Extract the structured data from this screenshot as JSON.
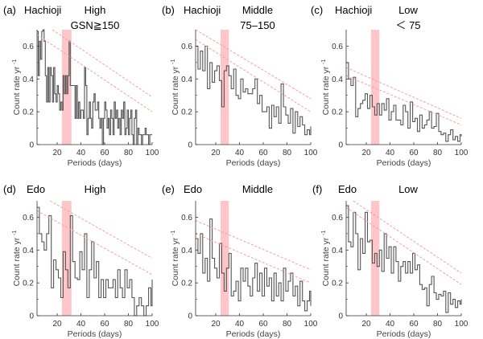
{
  "chart_data": [
    {
      "id": "a",
      "type": "line",
      "panel_label": "(a)",
      "site": "Hachioji",
      "title_line1": "High",
      "title_line2": "GSN≧150",
      "xlabel": "Periods (days)",
      "ylabel": "Count rate yr",
      "ylabel_sup": "-1",
      "xlim": [
        3,
        100
      ],
      "ylim": [
        0,
        0.7
      ],
      "xticks": [
        20,
        40,
        60,
        80,
        100
      ],
      "yticks": [
        0,
        0.2,
        0.4,
        0.6
      ],
      "ytick_labels": [
        "0",
        "0.2",
        "0.4",
        "0.6"
      ],
      "highlight_band": [
        24,
        32
      ],
      "significance_lines": [
        {
          "name": "upper",
          "x": [
            16,
            100
          ],
          "y": [
            0.7,
            0.29
          ]
        },
        {
          "name": "lower",
          "x": [
            3,
            100
          ],
          "y": [
            0.67,
            0.2
          ]
        }
      ],
      "series": {
        "x": [
          3,
          4,
          5,
          6,
          7,
          8,
          9,
          10,
          11,
          12,
          13,
          14,
          15,
          16,
          17,
          18,
          19,
          20,
          21,
          22,
          23,
          24,
          25,
          26,
          27,
          28,
          29,
          30,
          31,
          32,
          33,
          34,
          35,
          36,
          37,
          38,
          39,
          40,
          41,
          42,
          43,
          44,
          45,
          46,
          47,
          48,
          49,
          50,
          51,
          52,
          53,
          54,
          55,
          56,
          57,
          58,
          59,
          60,
          61,
          62,
          63,
          64,
          65,
          66,
          67,
          68,
          69,
          70,
          71,
          72,
          73,
          74,
          75,
          76,
          77,
          78,
          79,
          80,
          81,
          82,
          83,
          84,
          85,
          86,
          87,
          88,
          89,
          90,
          91,
          92,
          93,
          94,
          95,
          96,
          97,
          98,
          99,
          100
        ],
        "y": [
          0.69,
          0.42,
          0.63,
          0.52,
          0.69,
          0.7,
          0.63,
          0.42,
          0.26,
          0.47,
          0.26,
          0.47,
          0.42,
          0.26,
          0.47,
          0.31,
          0.26,
          0.36,
          0.31,
          0.21,
          0.26,
          0.21,
          0.42,
          0.31,
          0.42,
          0.31,
          0.42,
          0.63,
          0.36,
          0.36,
          0.36,
          0.36,
          0.16,
          0.36,
          0.16,
          0.26,
          0.16,
          0.21,
          0.21,
          0.16,
          0.47,
          0.36,
          0.06,
          0.16,
          0.26,
          0.16,
          0.1,
          0.26,
          0.31,
          0.21,
          0.21,
          0.26,
          0.16,
          0.1,
          0.16,
          0.0,
          0.16,
          0.26,
          0.21,
          0.1,
          0.16,
          0.06,
          0.21,
          0.16,
          0.06,
          0.26,
          0.16,
          0.21,
          0.1,
          0.16,
          0.06,
          0.21,
          0.16,
          0.26,
          0.06,
          0.1,
          0.21,
          0.06,
          0.16,
          0.21,
          0.06,
          0.0,
          0.16,
          0.21,
          0.0,
          0.1,
          0.06,
          0.06,
          0.0,
          0.06,
          0.06,
          0.1,
          0.06,
          0.06,
          0.0,
          0.06,
          0.06,
          0.06
        ]
      }
    },
    {
      "id": "b",
      "type": "line",
      "panel_label": "(b)",
      "site": "Hachioji",
      "title_line1": "Middle",
      "title_line2": "75–150",
      "xlabel": "Periods (days)",
      "ylabel": "Count rate yr",
      "ylabel_sup": "-1",
      "xlim": [
        3,
        100
      ],
      "ylim": [
        0,
        0.7
      ],
      "xticks": [
        20,
        40,
        60,
        80,
        100
      ],
      "yticks": [
        0,
        0.2,
        0.4,
        0.6
      ],
      "ytick_labels": [
        "0",
        "0.2",
        "0.4",
        "0.6"
      ],
      "highlight_band": [
        24,
        31
      ],
      "significance_lines": [
        {
          "name": "upper",
          "x": [
            3,
            100
          ],
          "y": [
            0.7,
            0.28
          ]
        },
        {
          "name": "lower",
          "x": [
            3,
            100
          ],
          "y": [
            0.64,
            0.2
          ]
        }
      ],
      "series": {
        "x": [
          3,
          5,
          7,
          9,
          11,
          13,
          15,
          17,
          19,
          21,
          23,
          25,
          27,
          29,
          31,
          33,
          35,
          37,
          39,
          41,
          43,
          45,
          47,
          49,
          51,
          53,
          55,
          57,
          59,
          61,
          63,
          65,
          67,
          69,
          71,
          73,
          75,
          77,
          79,
          81,
          83,
          85,
          87,
          89,
          91,
          93,
          95,
          97,
          99,
          100
        ],
        "y": [
          0.6,
          0.46,
          0.57,
          0.45,
          0.6,
          0.34,
          0.5,
          0.38,
          0.45,
          0.48,
          0.39,
          0.23,
          0.45,
          0.48,
          0.42,
          0.34,
          0.46,
          0.3,
          0.28,
          0.4,
          0.32,
          0.34,
          0.31,
          0.31,
          0.34,
          0.4,
          0.25,
          0.3,
          0.2,
          0.2,
          0.23,
          0.1,
          0.24,
          0.17,
          0.23,
          0.13,
          0.37,
          0.23,
          0.18,
          0.13,
          0.22,
          0.07,
          0.2,
          0.11,
          0.17,
          0.12,
          0.06,
          0.09,
          0.06,
          0.11
        ]
      }
    },
    {
      "id": "c",
      "type": "line",
      "panel_label": "(c)",
      "site": "Hachioji",
      "title_line1": "Low",
      "title_line2": "＜ 75",
      "xlabel": "Periods (days)",
      "ylabel": "Count rate yr",
      "ylabel_sup": "-1",
      "xlim": [
        3,
        100
      ],
      "ylim": [
        0,
        0.7
      ],
      "xticks": [
        20,
        40,
        60,
        80,
        100
      ],
      "yticks": [
        0,
        0.2,
        0.4,
        0.6
      ],
      "ytick_labels": [
        "0",
        "0.2",
        "0.4",
        "0.6"
      ],
      "highlight_band": [
        24,
        31
      ],
      "significance_lines": [
        {
          "name": "upper",
          "x": [
            3,
            100
          ],
          "y": [
            0.47,
            0.16
          ]
        },
        {
          "name": "lower",
          "x": [
            3,
            100
          ],
          "y": [
            0.42,
            0.12
          ]
        }
      ],
      "series": {
        "x": [
          3,
          5,
          7,
          9,
          11,
          13,
          15,
          17,
          19,
          21,
          23,
          25,
          27,
          29,
          31,
          33,
          35,
          37,
          39,
          41,
          43,
          45,
          47,
          49,
          51,
          53,
          55,
          57,
          59,
          61,
          63,
          65,
          67,
          69,
          71,
          73,
          75,
          77,
          79,
          81,
          83,
          85,
          87,
          89,
          91,
          93,
          95,
          97,
          99,
          100
        ],
        "y": [
          0.5,
          0.4,
          0.36,
          0.41,
          0.17,
          0.22,
          0.25,
          0.27,
          0.31,
          0.22,
          0.3,
          0.23,
          0.18,
          0.25,
          0.18,
          0.25,
          0.21,
          0.28,
          0.15,
          0.2,
          0.24,
          0.15,
          0.15,
          0.12,
          0.24,
          0.2,
          0.1,
          0.26,
          0.14,
          0.16,
          0.08,
          0.18,
          0.1,
          0.12,
          0.15,
          0.2,
          0.1,
          0.11,
          0.19,
          0.08,
          0.06,
          0.07,
          0.02,
          0.06,
          0.09,
          0.03,
          0.05,
          0.02,
          0.06,
          0.05
        ]
      }
    },
    {
      "id": "d",
      "type": "line",
      "panel_label": "(d)",
      "site": "Edo",
      "title_line1": "High",
      "title_line2": "",
      "xlabel": "Periods (days)",
      "ylabel": "Count rate yr",
      "ylabel_sup": "-1",
      "xlim": [
        3,
        100
      ],
      "ylim": [
        0,
        0.7
      ],
      "xticks": [
        20,
        40,
        60,
        80,
        100
      ],
      "yticks": [
        0,
        0.2,
        0.4,
        0.6
      ],
      "ytick_labels": [
        "0",
        "0.2",
        "0.4",
        "0.6"
      ],
      "highlight_band": [
        24,
        32
      ],
      "significance_lines": [
        {
          "name": "upper",
          "x": [
            14,
            100
          ],
          "y": [
            0.7,
            0.35
          ]
        },
        {
          "name": "lower",
          "x": [
            3,
            100
          ],
          "y": [
            0.64,
            0.25
          ]
        }
      ],
      "series": {
        "x": [
          3,
          5,
          7,
          9,
          11,
          13,
          15,
          17,
          19,
          21,
          23,
          25,
          27,
          29,
          31,
          33,
          35,
          37,
          39,
          41,
          43,
          45,
          47,
          49,
          51,
          53,
          55,
          57,
          59,
          61,
          63,
          65,
          67,
          69,
          71,
          73,
          75,
          77,
          79,
          81,
          83,
          85,
          87,
          89,
          91,
          93,
          95,
          97,
          99,
          100
        ],
        "y": [
          0.66,
          0.5,
          0.45,
          0.4,
          0.5,
          0.61,
          0.17,
          0.34,
          0.28,
          0.23,
          0.11,
          0.39,
          0.28,
          0.17,
          0.61,
          0.33,
          0.23,
          0.22,
          0.39,
          0.28,
          0.5,
          0.11,
          0.28,
          0.45,
          0.23,
          0.33,
          0.11,
          0.22,
          0.11,
          0.22,
          0.17,
          0.17,
          0.22,
          0.11,
          0.28,
          0.17,
          0.11,
          0.28,
          0.17,
          0.22,
          0.11,
          0.0,
          0.06,
          0.11,
          0.06,
          0.0,
          0.06,
          0.17,
          0.06,
          0.22
        ]
      }
    },
    {
      "id": "e",
      "type": "line",
      "panel_label": "(e)",
      "site": "Edo",
      "title_line1": "Middle",
      "title_line2": "",
      "xlabel": "Periods (days)",
      "ylabel": "Count rate yr",
      "ylabel_sup": "-1",
      "xlim": [
        3,
        100
      ],
      "ylim": [
        0,
        0.7
      ],
      "xticks": [
        20,
        40,
        60,
        80,
        100
      ],
      "yticks": [
        0,
        0.2,
        0.4,
        0.6
      ],
      "ytick_labels": [
        "0",
        "0.2",
        "0.4",
        "0.6"
      ],
      "highlight_band": [
        24,
        31
      ],
      "significance_lines": [
        {
          "name": "upper",
          "x": [
            3,
            100
          ],
          "y": [
            0.58,
            0.28
          ]
        },
        {
          "name": "lower",
          "x": [
            3,
            100
          ],
          "y": [
            0.5,
            0.2
          ]
        }
      ],
      "series": {
        "x": [
          3,
          5,
          7,
          9,
          11,
          13,
          15,
          17,
          19,
          21,
          23,
          25,
          27,
          29,
          31,
          33,
          35,
          37,
          39,
          41,
          43,
          45,
          47,
          49,
          51,
          53,
          55,
          57,
          59,
          61,
          63,
          65,
          67,
          69,
          71,
          73,
          75,
          77,
          79,
          81,
          83,
          85,
          87,
          89,
          91,
          93,
          95,
          97,
          99,
          100
        ],
        "y": [
          0.47,
          0.38,
          0.5,
          0.26,
          0.35,
          0.21,
          0.59,
          0.35,
          0.29,
          0.23,
          0.44,
          0.26,
          0.15,
          0.29,
          0.38,
          0.12,
          0.15,
          0.21,
          0.09,
          0.29,
          0.21,
          0.29,
          0.18,
          0.12,
          0.23,
          0.32,
          0.15,
          0.26,
          0.12,
          0.29,
          0.18,
          0.23,
          0.09,
          0.26,
          0.12,
          0.2,
          0.09,
          0.29,
          0.15,
          0.21,
          0.26,
          0.12,
          0.18,
          0.06,
          0.21,
          0.09,
          0.03,
          0.09,
          0.15,
          0.06
        ]
      }
    },
    {
      "id": "f",
      "type": "line",
      "panel_label": "(f)",
      "site": "Edo",
      "title_line1": "Low",
      "title_line2": "",
      "xlabel": "Periods (days)",
      "ylabel": "Count rate yr",
      "ylabel_sup": "-1",
      "xlim": [
        3,
        100
      ],
      "ylim": [
        0,
        0.7
      ],
      "xticks": [
        20,
        40,
        60,
        80,
        100
      ],
      "yticks": [
        0,
        0.2,
        0.4,
        0.6
      ],
      "ytick_labels": [
        "0",
        "0.2",
        "0.4",
        "0.6"
      ],
      "highlight_band": [
        24,
        31
      ],
      "significance_lines": [
        {
          "name": "upper",
          "x": [
            9,
            100
          ],
          "y": [
            0.7,
            0.26
          ]
        },
        {
          "name": "lower",
          "x": [
            3,
            100
          ],
          "y": [
            0.66,
            0.19
          ]
        }
      ],
      "series": {
        "x": [
          3,
          5,
          7,
          9,
          11,
          13,
          15,
          17,
          19,
          21,
          23,
          25,
          27,
          29,
          31,
          33,
          35,
          37,
          39,
          41,
          43,
          45,
          47,
          49,
          51,
          53,
          55,
          57,
          59,
          61,
          63,
          65,
          67,
          69,
          71,
          73,
          75,
          77,
          79,
          81,
          83,
          85,
          87,
          89,
          91,
          93,
          95,
          97,
          99,
          100
        ],
        "y": [
          0.67,
          0.45,
          0.42,
          0.63,
          0.5,
          0.28,
          0.47,
          0.38,
          0.63,
          0.45,
          0.46,
          0.32,
          0.38,
          0.3,
          0.4,
          0.27,
          0.5,
          0.35,
          0.42,
          0.26,
          0.42,
          0.33,
          0.21,
          0.3,
          0.33,
          0.26,
          0.33,
          0.26,
          0.38,
          0.28,
          0.31,
          0.19,
          0.16,
          0.17,
          0.06,
          0.19,
          0.24,
          0.14,
          0.1,
          0.13,
          0.12,
          0.15,
          0.02,
          0.14,
          0.07,
          0.1,
          0.05,
          0.09,
          0.07,
          0.1
        ]
      }
    }
  ]
}
